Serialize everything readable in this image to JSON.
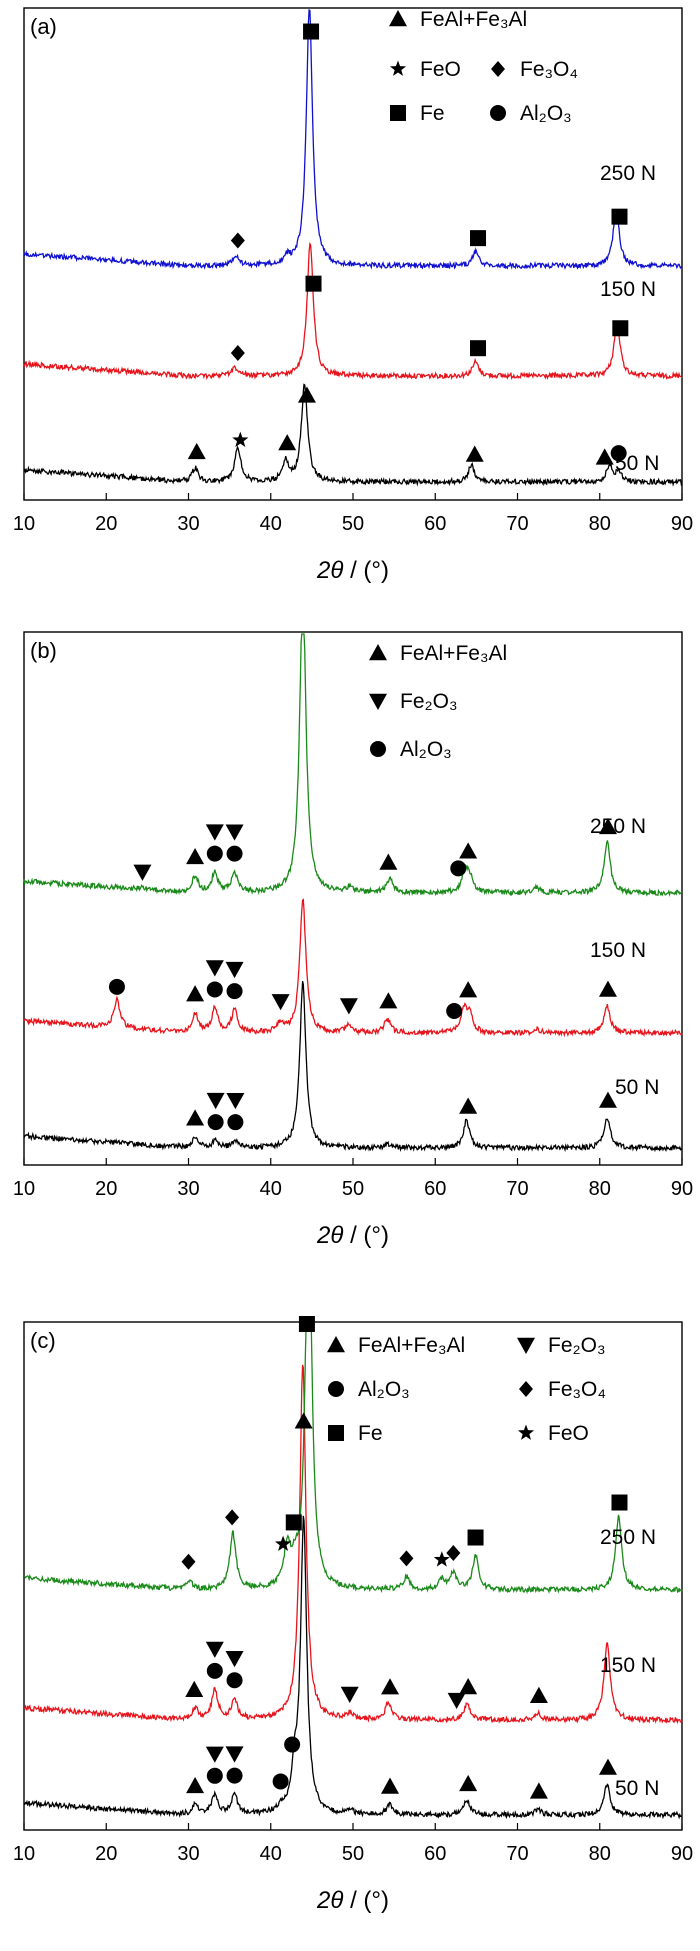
{
  "colors": {
    "black": "#000000",
    "red": "#e8141c",
    "blue": "#1010d0",
    "green": "#1a8a1a"
  },
  "xaxis": {
    "ticks": [
      "10",
      "20",
      "30",
      "40",
      "50",
      "60",
      "70",
      "80",
      "90"
    ],
    "label_main": "2θ",
    "label_unit": "/ (°)"
  },
  "chart_data": [
    {
      "type": "line",
      "panel_label": "(a)",
      "xlim": [
        10,
        90
      ],
      "grid": false,
      "legend": [
        {
          "marker": "triangle",
          "text": "FeAl+Fe₃Al"
        },
        {
          "marker": "star",
          "text": "FeO"
        },
        {
          "marker": "diamond",
          "text": "Fe₃O₄"
        },
        {
          "marker": "square",
          "text": "Fe"
        },
        {
          "marker": "circle",
          "text": "Al₂O₃"
        }
      ],
      "series": [
        {
          "name": "50 N",
          "color": "black",
          "peaks": [
            [
              30.8,
              0.1
            ],
            [
              36.0,
              0.24
            ],
            [
              41.8,
              0.14
            ],
            [
              44.1,
              0.7
            ],
            [
              64.4,
              0.12
            ],
            [
              81.2,
              0.12
            ],
            [
              82.3,
              0.06
            ]
          ],
          "markers": [
            [
              "triangle",
              31.0
            ],
            [
              "star",
              36.3
            ],
            [
              "triangle",
              42.0
            ],
            [
              "triangle",
              44.4
            ],
            [
              "triangle",
              64.8
            ],
            [
              "triangle",
              80.6
            ],
            [
              "circle",
              82.3
            ]
          ]
        },
        {
          "name": "150 N",
          "color": "red",
          "peaks": [
            [
              35.6,
              0.06
            ],
            [
              44.8,
              0.95
            ],
            [
              64.9,
              0.1
            ],
            [
              82.1,
              0.38
            ]
          ],
          "markers": [
            [
              "diamond",
              36.0
            ],
            [
              "square",
              45.2
            ],
            [
              "square",
              65.2
            ],
            [
              "square",
              82.5
            ]
          ]
        },
        {
          "name": "250 N",
          "color": "blue",
          "peaks": [
            [
              35.7,
              0.07
            ],
            [
              42.0,
              0.05
            ],
            [
              44.7,
              1.85
            ],
            [
              64.9,
              0.1
            ],
            [
              82.0,
              0.4
            ]
          ],
          "markers": [
            [
              "diamond",
              36.0
            ],
            [
              "square",
              44.9
            ],
            [
              "square",
              65.2
            ],
            [
              "square",
              82.4
            ]
          ]
        }
      ]
    },
    {
      "type": "line",
      "panel_label": "(b)",
      "xlim": [
        10,
        90
      ],
      "grid": false,
      "legend": [
        {
          "marker": "triangle",
          "text": "FeAl+Fe₃Al"
        },
        {
          "marker": "triangle-down",
          "text": "Fe₂O₃"
        },
        {
          "marker": "circle",
          "text": "Al₂O₃"
        }
      ],
      "series": [
        {
          "name": "50 N",
          "color": "black",
          "peaks": [
            [
              30.8,
              0.08
            ],
            [
              33.3,
              0.05
            ],
            [
              35.7,
              0.05
            ],
            [
              43.9,
              1.18
            ],
            [
              54.2,
              0.03
            ],
            [
              63.8,
              0.2
            ],
            [
              80.9,
              0.22
            ]
          ],
          "markers": [
            [
              "triangle",
              30.8
            ],
            [
              "circle",
              33.3
            ],
            [
              "circle",
              35.7
            ],
            [
              "triangle-down",
              33.3
            ],
            [
              "triangle-down",
              35.7
            ],
            [
              "triangle",
              64.0
            ],
            [
              "triangle",
              81.0
            ]
          ]
        },
        {
          "name": "150 N",
          "color": "red",
          "peaks": [
            [
              21.3,
              0.2
            ],
            [
              30.8,
              0.14
            ],
            [
              33.2,
              0.17
            ],
            [
              35.6,
              0.16
            ],
            [
              41.2,
              0.07
            ],
            [
              43.9,
              0.95
            ],
            [
              49.5,
              0.06
            ],
            [
              54.2,
              0.1
            ],
            [
              63.5,
              0.17
            ],
            [
              64.2,
              0.12
            ],
            [
              72.3,
              0.03
            ],
            [
              80.9,
              0.19
            ]
          ],
          "markers": [
            [
              "circle",
              21.3
            ],
            [
              "triangle",
              30.8
            ],
            [
              "circle",
              33.2
            ],
            [
              "circle",
              35.6
            ],
            [
              "triangle-down",
              33.2
            ],
            [
              "triangle-down",
              35.6
            ],
            [
              "triangle-down",
              41.2
            ],
            [
              "triangle-down",
              49.5
            ],
            [
              "triangle",
              54.3
            ],
            [
              "circle",
              62.3
            ],
            [
              "triangle",
              64.0
            ],
            [
              "triangle",
              81.0
            ]
          ]
        },
        {
          "name": "250 N",
          "color": "green",
          "peaks": [
            [
              24.4,
              0.02
            ],
            [
              30.8,
              0.12
            ],
            [
              33.2,
              0.14
            ],
            [
              35.6,
              0.14
            ],
            [
              43.9,
              2.2
            ],
            [
              49.6,
              0.04
            ],
            [
              54.5,
              0.1
            ],
            [
              63.6,
              0.15
            ],
            [
              64.2,
              0.1
            ],
            [
              72.3,
              0.04
            ],
            [
              80.9,
              0.36
            ]
          ],
          "markers": [
            [
              "triangle-down",
              24.4
            ],
            [
              "triangle",
              30.8
            ],
            [
              "circle",
              33.2
            ],
            [
              "circle",
              35.6
            ],
            [
              "triangle-down",
              33.2
            ],
            [
              "triangle-down",
              35.6
            ],
            [
              "triangle",
              54.3
            ],
            [
              "circle",
              62.8
            ],
            [
              "triangle",
              64.0
            ],
            [
              "triangle",
              81.0
            ]
          ]
        }
      ]
    },
    {
      "type": "line",
      "panel_label": "(c)",
      "xlim": [
        10,
        90
      ],
      "grid": false,
      "legend": [
        {
          "marker": "triangle",
          "text": "FeAl+Fe₃Al"
        },
        {
          "marker": "triangle-down",
          "text": "Fe₂O₃"
        },
        {
          "marker": "circle",
          "text": "Al₂O₃"
        },
        {
          "marker": "diamond",
          "text": "Fe₃O₄"
        },
        {
          "marker": "square",
          "text": "Fe"
        },
        {
          "marker": "star",
          "text": "FeO"
        }
      ],
      "series": [
        {
          "name": "50 N",
          "color": "black",
          "peaks": [
            [
              30.8,
              0.07
            ],
            [
              33.2,
              0.14
            ],
            [
              35.6,
              0.14
            ],
            [
              41.2,
              0.04
            ],
            [
              42.9,
              0.25
            ],
            [
              44.0,
              2.1
            ],
            [
              49.6,
              0.03
            ],
            [
              54.5,
              0.07
            ],
            [
              63.8,
              0.11
            ],
            [
              72.5,
              0.04
            ],
            [
              80.9,
              0.22
            ]
          ],
          "markers": [
            [
              "triangle",
              30.8
            ],
            [
              "circle",
              33.2
            ],
            [
              "circle",
              35.6
            ],
            [
              "triangle-down",
              33.2
            ],
            [
              "triangle-down",
              35.6
            ],
            [
              "circle",
              41.2
            ],
            [
              "circle",
              42.6
            ],
            [
              "triangle",
              54.5
            ],
            [
              "triangle",
              64.0
            ],
            [
              "triangle",
              72.6
            ],
            [
              "triangle",
              81.0
            ]
          ]
        },
        {
          "name": "150 N",
          "color": "red",
          "peaks": [
            [
              30.8,
              0.08
            ],
            [
              33.2,
              0.21
            ],
            [
              35.6,
              0.14
            ],
            [
              43.9,
              2.55
            ],
            [
              49.6,
              0.04
            ],
            [
              54.3,
              0.12
            ],
            [
              63.9,
              0.11
            ],
            [
              72.4,
              0.05
            ],
            [
              80.9,
              0.55
            ]
          ],
          "markers": [
            [
              "triangle",
              30.7
            ],
            [
              "circle",
              33.2
            ],
            [
              "circle",
              35.6
            ],
            [
              "triangle-down",
              33.2
            ],
            [
              "triangle-down",
              35.6
            ],
            [
              "triangle-down",
              49.6
            ],
            [
              "triangle",
              54.5
            ],
            [
              "triangle-down",
              62.6
            ],
            [
              "triangle",
              64.0
            ],
            [
              "triangle",
              72.6
            ]
          ]
        },
        {
          "name": "250 N",
          "color": "green",
          "peaks": [
            [
              30.1,
              0.07
            ],
            [
              35.4,
              0.4
            ],
            [
              42.0,
              0.28
            ],
            [
              42.9,
              0.12
            ],
            [
              44.6,
              2.9
            ],
            [
              56.5,
              0.09
            ],
            [
              60.8,
              0.07
            ],
            [
              62.2,
              0.12
            ],
            [
              64.9,
              0.24
            ],
            [
              82.3,
              0.52
            ]
          ],
          "markers": [
            [
              "diamond",
              30.0
            ],
            [
              "diamond",
              35.3
            ],
            [
              "star",
              41.5
            ],
            [
              "square",
              42.8
            ],
            [
              "triangle",
              44.0
            ],
            [
              "square",
              44.4
            ],
            [
              "diamond",
              56.5
            ],
            [
              "star",
              60.8
            ],
            [
              "diamond",
              62.2
            ],
            [
              "square",
              64.9
            ],
            [
              "square",
              82.4
            ]
          ]
        }
      ]
    }
  ]
}
